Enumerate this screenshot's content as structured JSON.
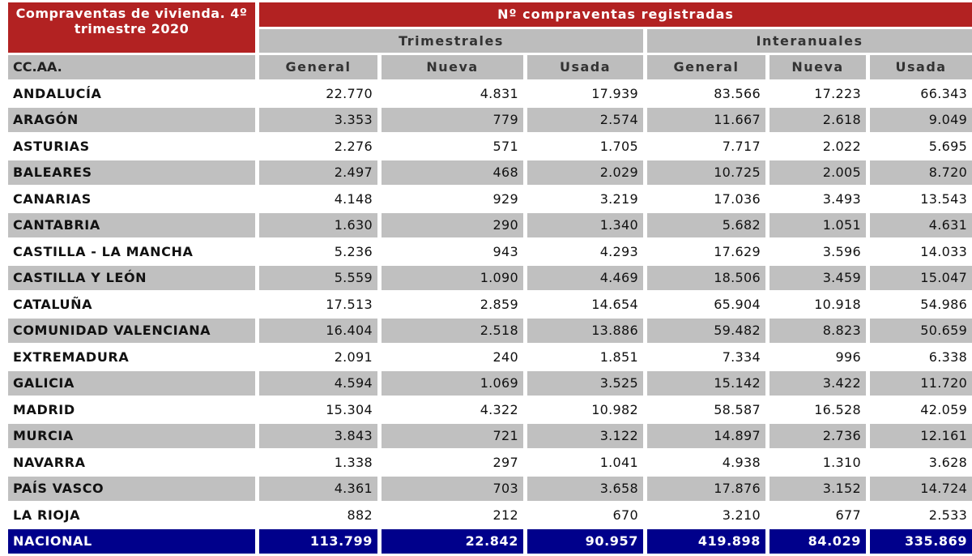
{
  "title": "Compraventas de vivienda. 4º trimestre 2020",
  "header": {
    "main": "Nº compraventas registradas",
    "group_trimestrales": "Trimestrales",
    "group_interanuales": "Interanuales",
    "region_col": "CC.AA.",
    "cols": [
      "General",
      "Nueva",
      "Usada",
      "General",
      "Nueva",
      "Usada"
    ]
  },
  "rows": [
    {
      "name": "ANDALUCÍA",
      "values": [
        "22.770",
        "4.831",
        "17.939",
        "83.566",
        "17.223",
        "66.343"
      ]
    },
    {
      "name": "ARAGÓN",
      "values": [
        "3.353",
        "779",
        "2.574",
        "11.667",
        "2.618",
        "9.049"
      ]
    },
    {
      "name": "ASTURIAS",
      "values": [
        "2.276",
        "571",
        "1.705",
        "7.717",
        "2.022",
        "5.695"
      ]
    },
    {
      "name": "BALEARES",
      "values": [
        "2.497",
        "468",
        "2.029",
        "10.725",
        "2.005",
        "8.720"
      ]
    },
    {
      "name": "CANARIAS",
      "values": [
        "4.148",
        "929",
        "3.219",
        "17.036",
        "3.493",
        "13.543"
      ]
    },
    {
      "name": "CANTABRIA",
      "values": [
        "1.630",
        "290",
        "1.340",
        "5.682",
        "1.051",
        "4.631"
      ]
    },
    {
      "name": "CASTILLA - LA MANCHA",
      "values": [
        "5.236",
        "943",
        "4.293",
        "17.629",
        "3.596",
        "14.033"
      ]
    },
    {
      "name": "CASTILLA Y LEÓN",
      "values": [
        "5.559",
        "1.090",
        "4.469",
        "18.506",
        "3.459",
        "15.047"
      ]
    },
    {
      "name": "CATALUÑA",
      "values": [
        "17.513",
        "2.859",
        "14.654",
        "65.904",
        "10.918",
        "54.986"
      ]
    },
    {
      "name": "COMUNIDAD VALENCIANA",
      "values": [
        "16.404",
        "2.518",
        "13.886",
        "59.482",
        "8.823",
        "50.659"
      ]
    },
    {
      "name": "EXTREMADURA",
      "values": [
        "2.091",
        "240",
        "1.851",
        "7.334",
        "996",
        "6.338"
      ]
    },
    {
      "name": "GALICIA",
      "values": [
        "4.594",
        "1.069",
        "3.525",
        "15.142",
        "3.422",
        "11.720"
      ]
    },
    {
      "name": "MADRID",
      "values": [
        "15.304",
        "4.322",
        "10.982",
        "58.587",
        "16.528",
        "42.059"
      ]
    },
    {
      "name": "MURCIA",
      "values": [
        "3.843",
        "721",
        "3.122",
        "14.897",
        "2.736",
        "12.161"
      ]
    },
    {
      "name": "NAVARRA",
      "values": [
        "1.338",
        "297",
        "1.041",
        "4.938",
        "1.310",
        "3.628"
      ]
    },
    {
      "name": "PAÍS VASCO",
      "values": [
        "4.361",
        "703",
        "3.658",
        "17.876",
        "3.152",
        "14.724"
      ]
    },
    {
      "name": "LA RIOJA",
      "values": [
        "882",
        "212",
        "670",
        "3.210",
        "677",
        "2.533"
      ]
    }
  ],
  "total": {
    "name": "NACIONAL",
    "values": [
      "113.799",
      "22.842",
      "90.957",
      "419.898",
      "84.029",
      "335.869"
    ]
  },
  "colors": {
    "header_red": "#b22222",
    "header_gray": "#bdbdbd",
    "row_alt": "#c0c0c0",
    "total_blue": "#00008b"
  }
}
